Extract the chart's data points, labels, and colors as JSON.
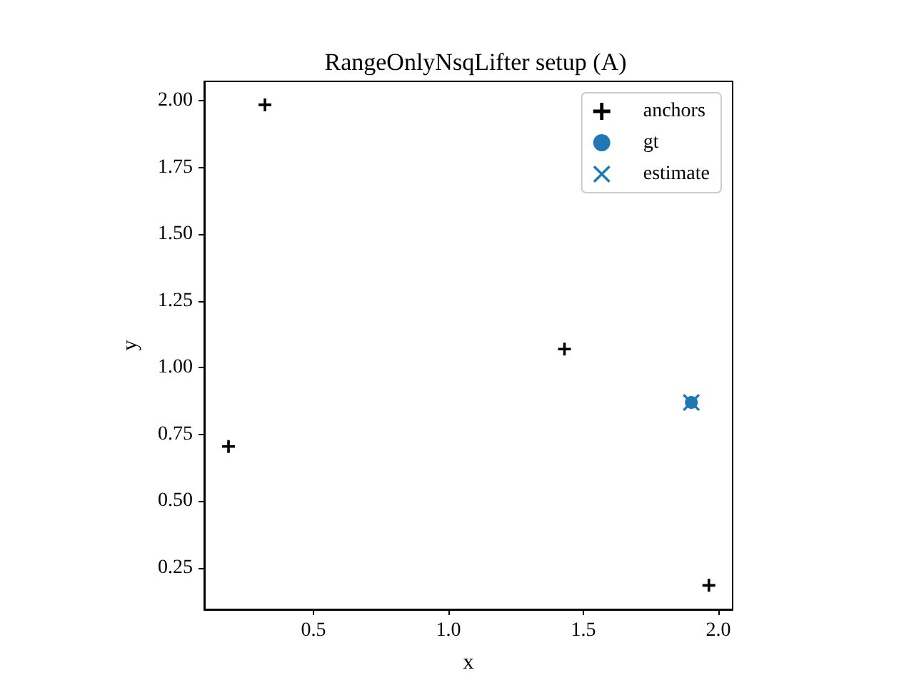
{
  "chart_data": {
    "type": "scatter",
    "title": "RangeOnlyNsqLifter setup (A)",
    "xlabel": "x",
    "ylabel": "y",
    "xlim": [
      0.095,
      2.053
    ],
    "ylim": [
      0.095,
      2.073
    ],
    "xticks": [
      {
        "value": 0.5,
        "label": "0.5"
      },
      {
        "value": 1,
        "label": "1.0"
      },
      {
        "value": 1.5,
        "label": "1.5"
      },
      {
        "value": 2,
        "label": "2.0"
      }
    ],
    "yticks": [
      {
        "value": 0.25,
        "label": "0.25"
      },
      {
        "value": 0.5,
        "label": "0.50"
      },
      {
        "value": 0.75,
        "label": "0.75"
      },
      {
        "value": 1,
        "label": "1.00"
      },
      {
        "value": 1.25,
        "label": "1.25"
      },
      {
        "value": 1.5,
        "label": "1.50"
      },
      {
        "value": 1.75,
        "label": "1.75"
      },
      {
        "value": 2,
        "label": "2.00"
      }
    ],
    "grid": false,
    "legend": "top right",
    "series": [
      {
        "name": "anchors",
        "color": "#000000",
        "marker": "cross",
        "x": [
          0.32,
          1.43,
          0.185,
          1.965
        ],
        "values": [
          1.985,
          1.07,
          0.705,
          0.185
        ]
      },
      {
        "name": "gt",
        "color": "#1f77b4",
        "marker": "circle",
        "x": [
          1.9
        ],
        "values": [
          0.87
        ]
      },
      {
        "name": "estimate",
        "color": "#1f77b4",
        "marker": "x",
        "x": [
          1.9
        ],
        "values": [
          0.87
        ]
      }
    ]
  }
}
